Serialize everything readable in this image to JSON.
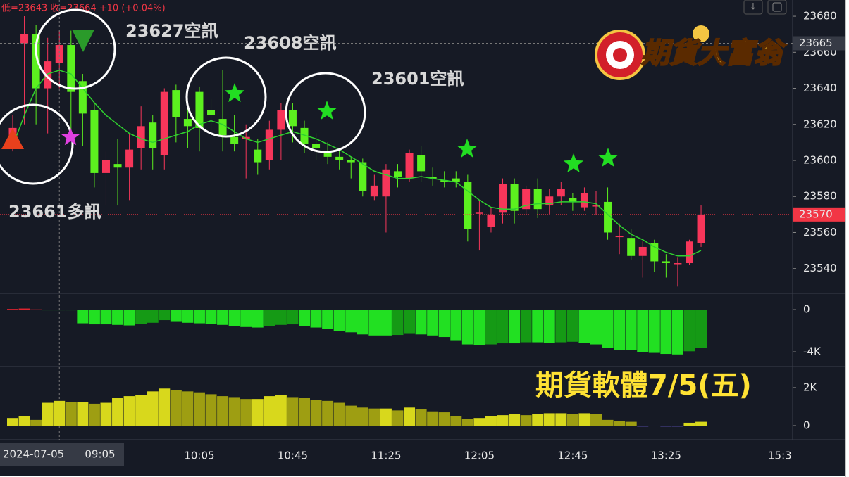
{
  "header": "低=23643 收=23664 +10 (+0.04%)",
  "crosshair": {
    "date": "2024-07-05",
    "price": 23665
  },
  "x_edge_label": "15:3",
  "annotations": [
    "23627空訊",
    "23608空訊",
    "23601空訊",
    "23661多訊"
  ],
  "banner": "期貨軟體7/5(五)",
  "logo": "期貨大富翁",
  "chart_data": [
    {
      "type": "candlestick",
      "up_color": "#f7365a",
      "down_color": "#5cf01f",
      "ma_color": "#2fd12f",
      "categories": [
        null,
        null,
        null,
        null,
        "09:05",
        null,
        null,
        null,
        null,
        null,
        null,
        null,
        null,
        null,
        null,
        null,
        "10:05",
        null,
        null,
        null,
        null,
        null,
        null,
        null,
        "10:45",
        null,
        null,
        null,
        null,
        null,
        null,
        null,
        "11:25",
        null,
        null,
        null,
        null,
        null,
        null,
        null,
        "12:05",
        null,
        null,
        null,
        null,
        null,
        null,
        null,
        "12:45",
        null,
        null,
        null,
        null,
        null,
        null,
        null,
        "13:25",
        null,
        null,
        null
      ],
      "open": [
        23612,
        23665,
        23670,
        23640,
        23654,
        23664,
        23644,
        23628,
        23593,
        23598,
        23596,
        23607,
        23621,
        23603,
        23639,
        23623,
        23638,
        23628,
        23623,
        23613,
        23612,
        23606,
        23600,
        23617,
        23628,
        23618,
        23609,
        23605,
        23602,
        23600,
        23599,
        23580,
        23580,
        23594,
        23590,
        23603,
        23591,
        23589,
        23590,
        23588,
        23571,
        23563,
        23571,
        23587,
        23573,
        23584,
        23575,
        23580,
        23579,
        23574,
        23575,
        23577,
        23558,
        23557,
        23547,
        23554,
        23544,
        23543,
        23543,
        23554
      ],
      "high": [
        23625,
        23680,
        23675,
        23668,
        23672,
        23672,
        23648,
        23632,
        23605,
        23612,
        23615,
        23630,
        23625,
        23640,
        23642,
        23630,
        23641,
        23634,
        23650,
        23625,
        23620,
        23612,
        23622,
        23632,
        23632,
        23622,
        23615,
        23610,
        23606,
        23602,
        23601,
        23592,
        23598,
        23598,
        23606,
        23608,
        23596,
        23594,
        23594,
        23592,
        23578,
        23574,
        23590,
        23590,
        23586,
        23590,
        23584,
        23588,
        23582,
        23585,
        23583,
        23585,
        23565,
        23562,
        23555,
        23556,
        23548,
        23546,
        23556,
        23575
      ],
      "low": [
        23605,
        23620,
        23620,
        23615,
        23640,
        23612,
        23608,
        23585,
        23575,
        23575,
        23578,
        23595,
        23595,
        23595,
        23610,
        23607,
        23605,
        23615,
        23605,
        23605,
        23590,
        23592,
        23595,
        23600,
        23610,
        23604,
        23600,
        23598,
        23595,
        23590,
        23580,
        23578,
        23560,
        23585,
        23588,
        23588,
        23586,
        23585,
        23585,
        23555,
        23550,
        23560,
        23565,
        23565,
        23570,
        23568,
        23570,
        23575,
        23572,
        23572,
        23570,
        23556,
        23548,
        23545,
        23535,
        23538,
        23535,
        23530,
        23542,
        23552
      ],
      "close": [
        23618,
        23670,
        23640,
        23655,
        23664,
        23638,
        23626,
        23593,
        23600,
        23596,
        23606,
        23619,
        23607,
        23638,
        23624,
        23619,
        23618,
        23625,
        23614,
        23609,
        23613,
        23599,
        23617,
        23628,
        23619,
        23609,
        23607,
        23602,
        23600,
        23599,
        23583,
        23586,
        23595,
        23591,
        23604,
        23594,
        23590,
        23588,
        23588,
        23562,
        23571,
        23570,
        23587,
        23572,
        23584,
        23573,
        23580,
        23584,
        23577,
        23582,
        23575,
        23560,
        23558,
        23547,
        23552,
        23544,
        23543,
        23543,
        23555,
        23570
      ],
      "ma": [
        23608,
        23625,
        23640,
        23648,
        23650,
        23648,
        23640,
        23632,
        23625,
        23620,
        23615,
        23612,
        23610,
        23612,
        23614,
        23616,
        23620,
        23622,
        23620,
        23616,
        23612,
        23610,
        23612,
        23614,
        23616,
        23614,
        23612,
        23609,
        23606,
        23602,
        23598,
        23594,
        23592,
        23590,
        23590,
        23591,
        23590,
        23589,
        23588,
        23583,
        23578,
        23574,
        23573,
        23573,
        23575,
        23576,
        23576,
        23577,
        23577,
        23577,
        23576,
        23570,
        23564,
        23559,
        23556,
        23552,
        23549,
        23547,
        23547,
        23550
      ],
      "ylim": [
        23527,
        23689
      ],
      "yticks": [
        23540,
        23560,
        23580,
        23600,
        23620,
        23640,
        23660,
        23680
      ]
    },
    {
      "type": "bar",
      "rise_color": "#22e022",
      "fall_color": "#159a15",
      "pos_color": "#e0242f",
      "values": [
        60,
        100,
        20,
        -20,
        -30,
        -50,
        -1300,
        -1400,
        -1400,
        -1450,
        -1500,
        -1350,
        -1250,
        -1000,
        -1100,
        -1250,
        -1300,
        -1350,
        -1450,
        -1550,
        -1650,
        -1700,
        -1550,
        -1450,
        -1400,
        -1550,
        -1700,
        -1850,
        -2000,
        -2150,
        -2350,
        -2450,
        -2450,
        -2400,
        -2300,
        -2350,
        -2450,
        -2600,
        -2900,
        -3300,
        -3350,
        -3300,
        -3200,
        -3200,
        -3100,
        -3100,
        -3150,
        -3100,
        -3050,
        -3150,
        -3300,
        -3650,
        -3850,
        -3850,
        -4000,
        -4100,
        -4200,
        -4250,
        -3950,
        -3600
      ],
      "ylim": [
        -5330,
        1470
      ],
      "yticks": [
        0,
        {
          "value": -4000,
          "label": "-4K"
        }
      ]
    },
    {
      "type": "bar",
      "rise_color": "#d8d81c",
      "fall_color": "#9e9e12",
      "neg_color": "#6a5acd",
      "values": [
        400,
        500,
        300,
        1200,
        1300,
        1250,
        1250,
        1150,
        1200,
        1450,
        1550,
        1600,
        1800,
        1950,
        1850,
        1800,
        1750,
        1650,
        1550,
        1500,
        1400,
        1400,
        1550,
        1600,
        1500,
        1450,
        1350,
        1300,
        1200,
        1050,
        950,
        900,
        900,
        800,
        950,
        850,
        750,
        700,
        500,
        350,
        400,
        500,
        550,
        600,
        550,
        600,
        650,
        650,
        600,
        650,
        600,
        300,
        250,
        200,
        -50,
        -30,
        -50,
        -50,
        150,
        200
      ],
      "ylim": [
        -740,
        3070
      ],
      "yticks": [
        0,
        {
          "value": 2000,
          "label": "2K"
        }
      ]
    }
  ]
}
